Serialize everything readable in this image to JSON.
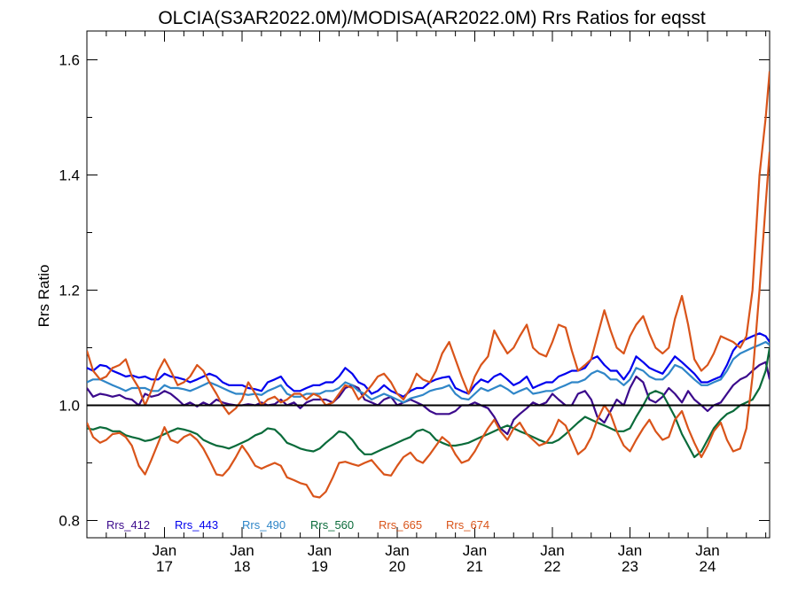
{
  "chart_data": {
    "type": "line",
    "title": "OLCIA(S3AR2022.0M)/MODISA(AR2022.0M)  Rrs Ratios for eqsst",
    "xlabel": "",
    "ylabel": "Rrs Ratio",
    "xlim": [
      2016.0,
      2024.8
    ],
    "ylim": [
      0.77,
      1.65
    ],
    "yticks": [
      0.8,
      1.0,
      1.2,
      1.4,
      1.6
    ],
    "ytick_labels": [
      "0.8",
      "1.0",
      "1.2",
      "1.4",
      "1.6"
    ],
    "xticks": [
      {
        "x": 2017,
        "line1": "Jan",
        "line2": "17"
      },
      {
        "x": 2018,
        "line1": "Jan",
        "line2": "18"
      },
      {
        "x": 2019,
        "line1": "Jan",
        "line2": "19"
      },
      {
        "x": 2020,
        "line1": "Jan",
        "line2": "20"
      },
      {
        "x": 2021,
        "line1": "Jan",
        "line2": "21"
      },
      {
        "x": 2022,
        "line1": "Jan",
        "line2": "22"
      },
      {
        "x": 2023,
        "line1": "Jan",
        "line2": "23"
      },
      {
        "x": 2024,
        "line1": "Jan",
        "line2": "24"
      }
    ],
    "reference_line": 1.0,
    "legend_position": "bottom-left",
    "x": [
      2016.0,
      2016.08,
      2016.17,
      2016.25,
      2016.33,
      2016.42,
      2016.5,
      2016.58,
      2016.67,
      2016.75,
      2016.83,
      2016.92,
      2017.0,
      2017.08,
      2017.17,
      2017.25,
      2017.33,
      2017.42,
      2017.5,
      2017.58,
      2017.67,
      2017.75,
      2017.83,
      2017.92,
      2018.0,
      2018.08,
      2018.17,
      2018.25,
      2018.33,
      2018.42,
      2018.5,
      2018.58,
      2018.67,
      2018.75,
      2018.83,
      2018.92,
      2019.0,
      2019.08,
      2019.17,
      2019.25,
      2019.33,
      2019.42,
      2019.5,
      2019.58,
      2019.67,
      2019.75,
      2019.83,
      2019.92,
      2020.0,
      2020.08,
      2020.17,
      2020.25,
      2020.33,
      2020.42,
      2020.5,
      2020.58,
      2020.67,
      2020.75,
      2020.83,
      2020.92,
      2021.0,
      2021.08,
      2021.17,
      2021.25,
      2021.33,
      2021.42,
      2021.5,
      2021.58,
      2021.67,
      2021.75,
      2021.83,
      2021.92,
      2022.0,
      2022.08,
      2022.17,
      2022.25,
      2022.33,
      2022.42,
      2022.5,
      2022.58,
      2022.67,
      2022.75,
      2022.83,
      2022.92,
      2023.0,
      2023.08,
      2023.17,
      2023.25,
      2023.33,
      2023.42,
      2023.5,
      2023.58,
      2023.67,
      2023.75,
      2023.83,
      2023.92,
      2024.0,
      2024.08,
      2024.17,
      2024.25,
      2024.33,
      2024.42,
      2024.5,
      2024.58,
      2024.67,
      2024.75,
      2024.8
    ],
    "series": [
      {
        "name": "Rrs_412",
        "color": "#3b0a8c",
        "values": [
          1.03,
          1.015,
          1.02,
          1.018,
          1.015,
          1.018,
          1.012,
          1.01,
          1.0,
          1.02,
          1.015,
          1.018,
          1.025,
          1.02,
          1.01,
          1.0,
          1.005,
          0.998,
          1.005,
          1.0,
          1.01,
          1.005,
          1.002,
          1.0,
          1.0,
          1.002,
          1.0,
          1.005,
          1.0,
          1.002,
          1.01,
          1.0,
          1.005,
          0.995,
          1.005,
          1.01,
          1.01,
          1.01,
          1.005,
          1.015,
          1.03,
          1.035,
          1.03,
          1.01,
          1.005,
          1.0,
          1.01,
          1.015,
          1.0,
          1.005,
          1.01,
          1.005,
          1.0,
          0.99,
          0.985,
          0.985,
          0.985,
          0.99,
          1.0,
          1.0,
          1.005,
          1.0,
          0.995,
          0.98,
          0.96,
          0.95,
          0.975,
          0.985,
          0.995,
          1.005,
          1.0,
          1.005,
          1.02,
          1.01,
          1.0,
          1.0,
          1.02,
          1.025,
          1.01,
          0.98,
          0.97,
          0.99,
          1.01,
          1.0,
          1.03,
          1.05,
          1.04,
          1.01,
          1.005,
          1.015,
          1.03,
          1.02,
          1.005,
          1.025,
          1.01,
          1.0,
          0.99,
          1.0,
          1.005,
          1.02,
          1.035,
          1.045,
          1.05,
          1.06,
          1.07,
          1.075,
          1.045
        ]
      },
      {
        "name": "Rrs_443",
        "color": "#0000ee",
        "values": [
          1.065,
          1.06,
          1.07,
          1.068,
          1.06,
          1.055,
          1.05,
          1.052,
          1.048,
          1.05,
          1.045,
          1.045,
          1.055,
          1.05,
          1.048,
          1.045,
          1.04,
          1.045,
          1.05,
          1.055,
          1.05,
          1.04,
          1.035,
          1.035,
          1.035,
          1.03,
          1.028,
          1.025,
          1.04,
          1.045,
          1.05,
          1.035,
          1.025,
          1.025,
          1.03,
          1.035,
          1.035,
          1.04,
          1.04,
          1.05,
          1.065,
          1.055,
          1.04,
          1.035,
          1.02,
          1.025,
          1.035,
          1.025,
          1.02,
          1.015,
          1.025,
          1.03,
          1.03,
          1.04,
          1.045,
          1.048,
          1.05,
          1.03,
          1.025,
          1.02,
          1.035,
          1.045,
          1.04,
          1.05,
          1.055,
          1.045,
          1.035,
          1.04,
          1.05,
          1.03,
          1.035,
          1.04,
          1.04,
          1.05,
          1.055,
          1.06,
          1.06,
          1.065,
          1.08,
          1.085,
          1.07,
          1.06,
          1.06,
          1.045,
          1.06,
          1.085,
          1.075,
          1.065,
          1.06,
          1.055,
          1.07,
          1.085,
          1.075,
          1.065,
          1.055,
          1.04,
          1.04,
          1.045,
          1.05,
          1.07,
          1.095,
          1.11,
          1.115,
          1.12,
          1.125,
          1.12,
          1.11
        ]
      },
      {
        "name": "Rrs_490",
        "color": "#2f86c8",
        "values": [
          1.04,
          1.045,
          1.045,
          1.04,
          1.035,
          1.03,
          1.025,
          1.03,
          1.03,
          1.03,
          1.025,
          1.025,
          1.035,
          1.03,
          1.03,
          1.028,
          1.025,
          1.03,
          1.035,
          1.04,
          1.035,
          1.03,
          1.025,
          1.02,
          1.02,
          1.018,
          1.02,
          1.018,
          1.025,
          1.03,
          1.035,
          1.02,
          1.015,
          1.015,
          1.02,
          1.02,
          1.02,
          1.025,
          1.025,
          1.03,
          1.04,
          1.035,
          1.025,
          1.02,
          1.01,
          1.015,
          1.02,
          1.015,
          1.01,
          1.005,
          1.012,
          1.015,
          1.018,
          1.025,
          1.028,
          1.03,
          1.035,
          1.02,
          1.012,
          1.01,
          1.02,
          1.03,
          1.025,
          1.03,
          1.035,
          1.028,
          1.02,
          1.025,
          1.03,
          1.02,
          1.022,
          1.025,
          1.025,
          1.03,
          1.035,
          1.04,
          1.04,
          1.045,
          1.055,
          1.06,
          1.055,
          1.045,
          1.045,
          1.035,
          1.045,
          1.065,
          1.06,
          1.05,
          1.045,
          1.045,
          1.055,
          1.07,
          1.065,
          1.055,
          1.045,
          1.035,
          1.035,
          1.04,
          1.045,
          1.06,
          1.08,
          1.09,
          1.095,
          1.1,
          1.105,
          1.11,
          1.105
        ]
      },
      {
        "name": "Rrs_560",
        "color": "#0a6b3a",
        "values": [
          0.96,
          0.958,
          0.962,
          0.96,
          0.955,
          0.955,
          0.948,
          0.945,
          0.942,
          0.938,
          0.94,
          0.945,
          0.95,
          0.955,
          0.96,
          0.958,
          0.955,
          0.95,
          0.94,
          0.935,
          0.93,
          0.928,
          0.925,
          0.93,
          0.935,
          0.94,
          0.948,
          0.952,
          0.96,
          0.958,
          0.948,
          0.935,
          0.93,
          0.925,
          0.922,
          0.92,
          0.925,
          0.935,
          0.945,
          0.955,
          0.952,
          0.94,
          0.925,
          0.915,
          0.915,
          0.92,
          0.925,
          0.93,
          0.935,
          0.94,
          0.945,
          0.955,
          0.958,
          0.952,
          0.94,
          0.935,
          0.93,
          0.93,
          0.932,
          0.935,
          0.94,
          0.945,
          0.95,
          0.955,
          0.96,
          0.965,
          0.96,
          0.955,
          0.95,
          0.945,
          0.94,
          0.935,
          0.935,
          0.94,
          0.95,
          0.96,
          0.97,
          0.98,
          0.975,
          0.97,
          0.965,
          0.96,
          0.955,
          0.955,
          0.96,
          0.98,
          1.0,
          1.02,
          1.025,
          1.02,
          1.0,
          0.98,
          0.95,
          0.93,
          0.91,
          0.92,
          0.94,
          0.96,
          0.975,
          0.985,
          0.99,
          1.0,
          1.005,
          1.01,
          1.03,
          1.06,
          1.1
        ]
      },
      {
        "name": "Rrs_665",
        "color": "#d9541a",
        "values": [
          1.095,
          1.06,
          1.045,
          1.05,
          1.065,
          1.07,
          1.08,
          1.05,
          1.03,
          1.0,
          1.025,
          1.06,
          1.08,
          1.06,
          1.035,
          1.04,
          1.05,
          1.07,
          1.06,
          1.04,
          1.02,
          1.0,
          0.985,
          0.995,
          1.01,
          1.04,
          1.02,
          1.0,
          1.01,
          1.015,
          1.005,
          1.01,
          1.02,
          1.02,
          1.01,
          1.02,
          1.015,
          1.0,
          1.005,
          1.02,
          1.035,
          1.03,
          1.01,
          1.02,
          1.035,
          1.05,
          1.055,
          1.04,
          1.02,
          1.01,
          1.03,
          1.055,
          1.045,
          1.04,
          1.06,
          1.09,
          1.11,
          1.08,
          1.05,
          1.02,
          1.05,
          1.07,
          1.085,
          1.13,
          1.11,
          1.09,
          1.1,
          1.12,
          1.14,
          1.1,
          1.09,
          1.085,
          1.11,
          1.14,
          1.135,
          1.095,
          1.06,
          1.07,
          1.08,
          1.12,
          1.165,
          1.13,
          1.1,
          1.09,
          1.12,
          1.14,
          1.155,
          1.125,
          1.1,
          1.09,
          1.1,
          1.15,
          1.19,
          1.14,
          1.08,
          1.06,
          1.07,
          1.09,
          1.12,
          1.115,
          1.11,
          1.1,
          1.12,
          1.2,
          1.4,
          1.5,
          1.58
        ]
      },
      {
        "name": "Rrs_674",
        "color": "#d9541a",
        "values": [
          0.97,
          0.945,
          0.935,
          0.94,
          0.95,
          0.952,
          0.945,
          0.93,
          0.895,
          0.88,
          0.905,
          0.935,
          0.962,
          0.94,
          0.935,
          0.945,
          0.95,
          0.94,
          0.925,
          0.905,
          0.88,
          0.878,
          0.89,
          0.91,
          0.93,
          0.915,
          0.895,
          0.89,
          0.895,
          0.9,
          0.895,
          0.875,
          0.87,
          0.865,
          0.862,
          0.842,
          0.84,
          0.85,
          0.875,
          0.9,
          0.902,
          0.898,
          0.895,
          0.9,
          0.905,
          0.892,
          0.88,
          0.878,
          0.895,
          0.91,
          0.918,
          0.905,
          0.9,
          0.915,
          0.93,
          0.945,
          0.935,
          0.915,
          0.9,
          0.905,
          0.92,
          0.94,
          0.96,
          0.975,
          0.955,
          0.94,
          0.96,
          0.97,
          0.95,
          0.94,
          0.93,
          0.935,
          0.95,
          0.975,
          0.965,
          0.94,
          0.915,
          0.925,
          0.945,
          0.975,
          1.0,
          0.985,
          0.955,
          0.93,
          0.92,
          0.94,
          0.96,
          0.975,
          0.955,
          0.94,
          0.945,
          0.975,
          0.99,
          0.96,
          0.935,
          0.91,
          0.93,
          0.955,
          0.97,
          0.94,
          0.92,
          0.925,
          0.96,
          1.05,
          1.2,
          1.35,
          1.44
        ]
      }
    ]
  }
}
